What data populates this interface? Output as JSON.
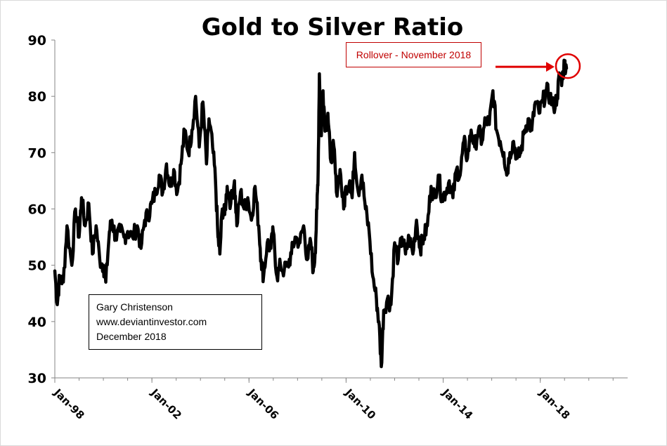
{
  "chart_data": {
    "type": "line",
    "title": "Gold to Silver Ratio",
    "xlabel": "",
    "ylabel": "",
    "ylim": [
      30,
      90
    ],
    "yticks": [
      "30",
      "40",
      "50",
      "60",
      "70",
      "80",
      "90"
    ],
    "xticks": [
      "Jan-98",
      "Jan-02",
      "Jan-06",
      "Jan-10",
      "Jan-14",
      "Jan-18"
    ],
    "x_range_years": [
      1998.0,
      2021.6
    ],
    "grid": false,
    "series_color": "#000000",
    "series": [
      {
        "points": [
          [
            1998.0,
            49
          ],
          [
            1998.1,
            43
          ],
          [
            1998.2,
            48
          ],
          [
            1998.35,
            47
          ],
          [
            1998.5,
            57
          ],
          [
            1998.7,
            50
          ],
          [
            1998.85,
            60
          ],
          [
            1999.0,
            55
          ],
          [
            1999.1,
            62
          ],
          [
            1999.25,
            57
          ],
          [
            1999.4,
            61
          ],
          [
            1999.55,
            52
          ],
          [
            1999.7,
            57
          ],
          [
            1999.85,
            51
          ],
          [
            2000.0,
            50
          ],
          [
            2000.1,
            47
          ],
          [
            2000.25,
            56
          ],
          [
            2000.35,
            58
          ],
          [
            2000.5,
            55
          ],
          [
            2000.7,
            56
          ],
          [
            2000.85,
            55
          ],
          [
            2001.0,
            56
          ],
          [
            2001.2,
            55
          ],
          [
            2001.4,
            57
          ],
          [
            2001.55,
            53
          ],
          [
            2001.7,
            58
          ],
          [
            2001.85,
            59
          ],
          [
            2002.0,
            61
          ],
          [
            2002.15,
            63
          ],
          [
            2002.3,
            66
          ],
          [
            2002.45,
            63
          ],
          [
            2002.6,
            68
          ],
          [
            2002.75,
            64
          ],
          [
            2002.9,
            67
          ],
          [
            2003.05,
            63
          ],
          [
            2003.2,
            68
          ],
          [
            2003.35,
            74
          ],
          [
            2003.5,
            70
          ],
          [
            2003.65,
            74
          ],
          [
            2003.8,
            80
          ],
          [
            2003.95,
            71
          ],
          [
            2004.1,
            79
          ],
          [
            2004.25,
            68
          ],
          [
            2004.35,
            76
          ],
          [
            2004.5,
            71
          ],
          [
            2004.62,
            65
          ],
          [
            2004.72,
            55
          ],
          [
            2004.8,
            52
          ],
          [
            2004.9,
            60
          ],
          [
            2005.0,
            59
          ],
          [
            2005.1,
            64
          ],
          [
            2005.25,
            61
          ],
          [
            2005.4,
            65
          ],
          [
            2005.5,
            57
          ],
          [
            2005.65,
            63
          ],
          [
            2005.8,
            60
          ],
          [
            2005.95,
            62
          ],
          [
            2006.1,
            58
          ],
          [
            2006.25,
            64
          ],
          [
            2006.4,
            57
          ],
          [
            2006.5,
            51
          ],
          [
            2006.6,
            48
          ],
          [
            2006.75,
            54
          ],
          [
            2006.9,
            53
          ],
          [
            2007.0,
            56
          ],
          [
            2007.15,
            48
          ],
          [
            2007.3,
            50
          ],
          [
            2007.45,
            49
          ],
          [
            2007.6,
            50
          ],
          [
            2007.75,
            52
          ],
          [
            2007.9,
            55
          ],
          [
            2008.1,
            54
          ],
          [
            2008.25,
            57
          ],
          [
            2008.4,
            51
          ],
          [
            2008.55,
            54
          ],
          [
            2008.65,
            49
          ],
          [
            2008.72,
            52
          ],
          [
            2008.8,
            60
          ],
          [
            2008.85,
            67
          ],
          [
            2008.9,
            84
          ],
          [
            2008.98,
            73
          ],
          [
            2009.05,
            81
          ],
          [
            2009.15,
            74
          ],
          [
            2009.25,
            77
          ],
          [
            2009.35,
            69
          ],
          [
            2009.5,
            71
          ],
          [
            2009.6,
            63
          ],
          [
            2009.75,
            67
          ],
          [
            2009.9,
            60
          ],
          [
            2010.0,
            64
          ],
          [
            2010.15,
            65
          ],
          [
            2010.25,
            62
          ],
          [
            2010.35,
            70
          ],
          [
            2010.5,
            63
          ],
          [
            2010.65,
            66
          ],
          [
            2010.8,
            60
          ],
          [
            2010.95,
            56
          ],
          [
            2011.1,
            48
          ],
          [
            2011.25,
            44
          ],
          [
            2011.35,
            40
          ],
          [
            2011.45,
            32
          ],
          [
            2011.55,
            42
          ],
          [
            2011.7,
            44
          ],
          [
            2011.85,
            43
          ],
          [
            2012.0,
            54
          ],
          [
            2012.15,
            51
          ],
          [
            2012.3,
            55
          ],
          [
            2012.45,
            52
          ],
          [
            2012.6,
            55
          ],
          [
            2012.75,
            52
          ],
          [
            2012.9,
            58
          ],
          [
            2013.05,
            53
          ],
          [
            2013.2,
            55
          ],
          [
            2013.35,
            57
          ],
          [
            2013.5,
            64
          ],
          [
            2013.65,
            62
          ],
          [
            2013.8,
            66
          ],
          [
            2013.95,
            62
          ],
          [
            2014.1,
            63
          ],
          [
            2014.25,
            65
          ],
          [
            2014.4,
            62
          ],
          [
            2014.55,
            67
          ],
          [
            2014.7,
            66
          ],
          [
            2014.85,
            72
          ],
          [
            2015.0,
            69
          ],
          [
            2015.15,
            74
          ],
          [
            2015.3,
            71
          ],
          [
            2015.45,
            74
          ],
          [
            2015.6,
            72
          ],
          [
            2015.75,
            76
          ],
          [
            2015.9,
            75
          ],
          [
            2016.05,
            81
          ],
          [
            2016.2,
            74
          ],
          [
            2016.35,
            72
          ],
          [
            2016.5,
            70
          ],
          [
            2016.62,
            66
          ],
          [
            2016.75,
            70
          ],
          [
            2016.9,
            72
          ],
          [
            2017.05,
            69
          ],
          [
            2017.2,
            70
          ],
          [
            2017.35,
            74
          ],
          [
            2017.5,
            76
          ],
          [
            2017.65,
            74
          ],
          [
            2017.8,
            79
          ],
          [
            2017.95,
            77
          ],
          [
            2018.1,
            79
          ],
          [
            2018.25,
            81
          ],
          [
            2018.4,
            80
          ],
          [
            2018.55,
            78
          ],
          [
            2018.7,
            80
          ],
          [
            2018.8,
            84
          ],
          [
            2018.9,
            83
          ],
          [
            2019.0,
            86
          ],
          [
            2019.08,
            85
          ]
        ]
      }
    ]
  },
  "annotations": {
    "callout": "Rollover - November 2018",
    "credit_lines": [
      "Gary Christenson",
      "www.deviantinvestor.com",
      "December 2018"
    ],
    "highlight_color": "#e00000"
  }
}
